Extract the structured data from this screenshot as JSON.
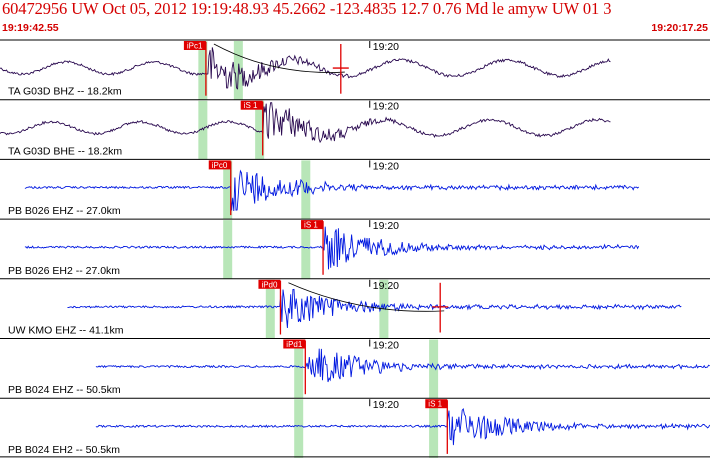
{
  "header": {
    "title": "60472956 UW Oct 05, 2012 19:19:48.93    45.2662 -123.4835 12.7 0.76 Md le amyw UW 01    3",
    "time_start": "19:19:42.55",
    "time_end": "19:20:17.25"
  },
  "time_tick": "19:20",
  "colors": {
    "accent": "#d40000",
    "trace_dark": "#2a0a50",
    "trace_blue": "#0018e0",
    "window": "#b8e6b8"
  },
  "channels": [
    {
      "label": "TA G03D BHZ -- 18.2km",
      "pick": "iPc1",
      "color": "dark",
      "start": 0.0,
      "end": 0.86,
      "onset": 0.29,
      "windows": [
        0.285,
        0.335
      ],
      "stripe2": false,
      "curve": true,
      "marker": 0.48
    },
    {
      "label": "TA G03D BHE -- 18.2km",
      "pick": "iS 1",
      "color": "dark",
      "start": 0.0,
      "end": 0.86,
      "onset": 0.37,
      "windows": [
        0.285,
        0.365
      ],
      "stripe2": true
    },
    {
      "label": "PB B026 EHZ -- 27.0km",
      "pick": "iPc0",
      "color": "blue",
      "start": 0.035,
      "end": 0.9,
      "onset": 0.325,
      "windows": [
        0.32,
        0.43
      ],
      "stripe2": false
    },
    {
      "label": "PB B026 EH2 -- 27.0km",
      "pick": "iS 1",
      "color": "blue",
      "start": 0.035,
      "end": 0.9,
      "onset": 0.455,
      "windows": [
        0.32,
        0.43
      ],
      "stripe2": false
    },
    {
      "label": "UW KMO EHZ -- 41.1km",
      "pick": "iPd0",
      "color": "blue",
      "start": 0.095,
      "end": 0.96,
      "onset": 0.395,
      "windows": [
        0.38,
        0.54
      ],
      "stripe2": false,
      "curve": true,
      "marker": 0.62
    },
    {
      "label": "PB B024 EHZ -- 50.5km",
      "pick": "iPd1",
      "color": "blue",
      "start": 0.135,
      "end": 1.0,
      "onset": 0.43,
      "windows": [
        0.42,
        0.61
      ],
      "stripe2": false
    },
    {
      "label": "PB B024 EH2 -- 50.5km",
      "pick": "iS 1",
      "color": "blue",
      "start": 0.135,
      "end": 1.0,
      "onset": 0.63,
      "windows": [
        0.42,
        0.61
      ],
      "stripe2": false
    }
  ]
}
